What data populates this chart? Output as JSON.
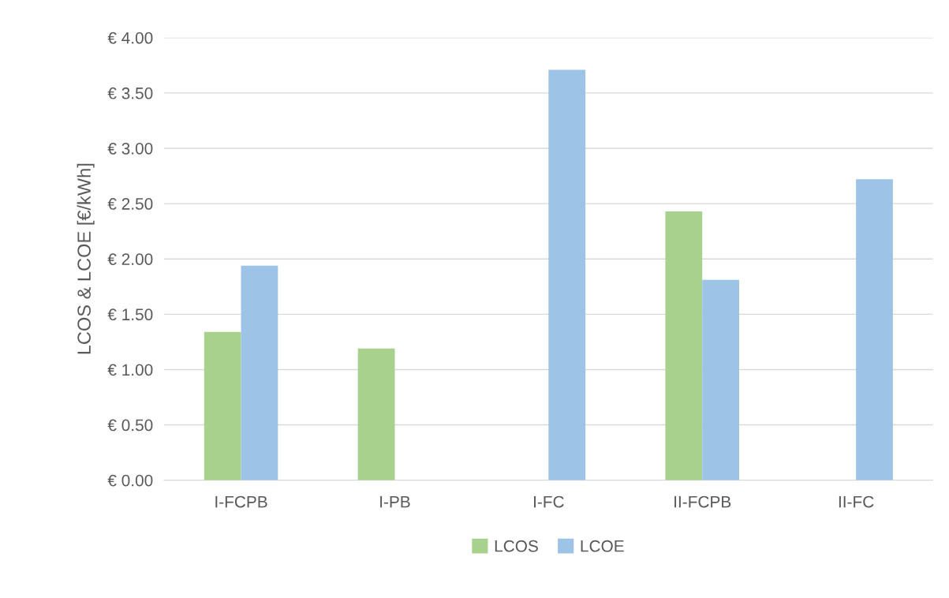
{
  "chart_data": {
    "type": "bar",
    "ylabel": "LCOS & LCOE [€/kWh]",
    "categories": [
      "I-FCPB",
      "I-PB",
      "I-FC",
      "II-FCPB",
      "II-FC"
    ],
    "series": [
      {
        "name": "LCOS",
        "color": "#a9d18e",
        "values": [
          1.34,
          1.19,
          null,
          2.43,
          null
        ]
      },
      {
        "name": "LCOE",
        "color": "#9dc3e6",
        "values": [
          1.94,
          null,
          3.71,
          1.81,
          2.72
        ]
      }
    ],
    "ylim": [
      0,
      4
    ],
    "yticks": [
      {
        "value": 0,
        "label": "€ 0.00"
      },
      {
        "value": 0.5,
        "label": "€ 0.50"
      },
      {
        "value": 1,
        "label": "€ 1.00"
      },
      {
        "value": 1.5,
        "label": "€ 1.50"
      },
      {
        "value": 2,
        "label": "€ 2.00"
      },
      {
        "value": 2.5,
        "label": "€ 2.50"
      },
      {
        "value": 3,
        "label": "€ 3.00"
      },
      {
        "value": 3.5,
        "label": "€ 3.50"
      },
      {
        "value": 4,
        "label": "€ 4.00"
      }
    ],
    "grid": "y",
    "legend": "bottom"
  }
}
